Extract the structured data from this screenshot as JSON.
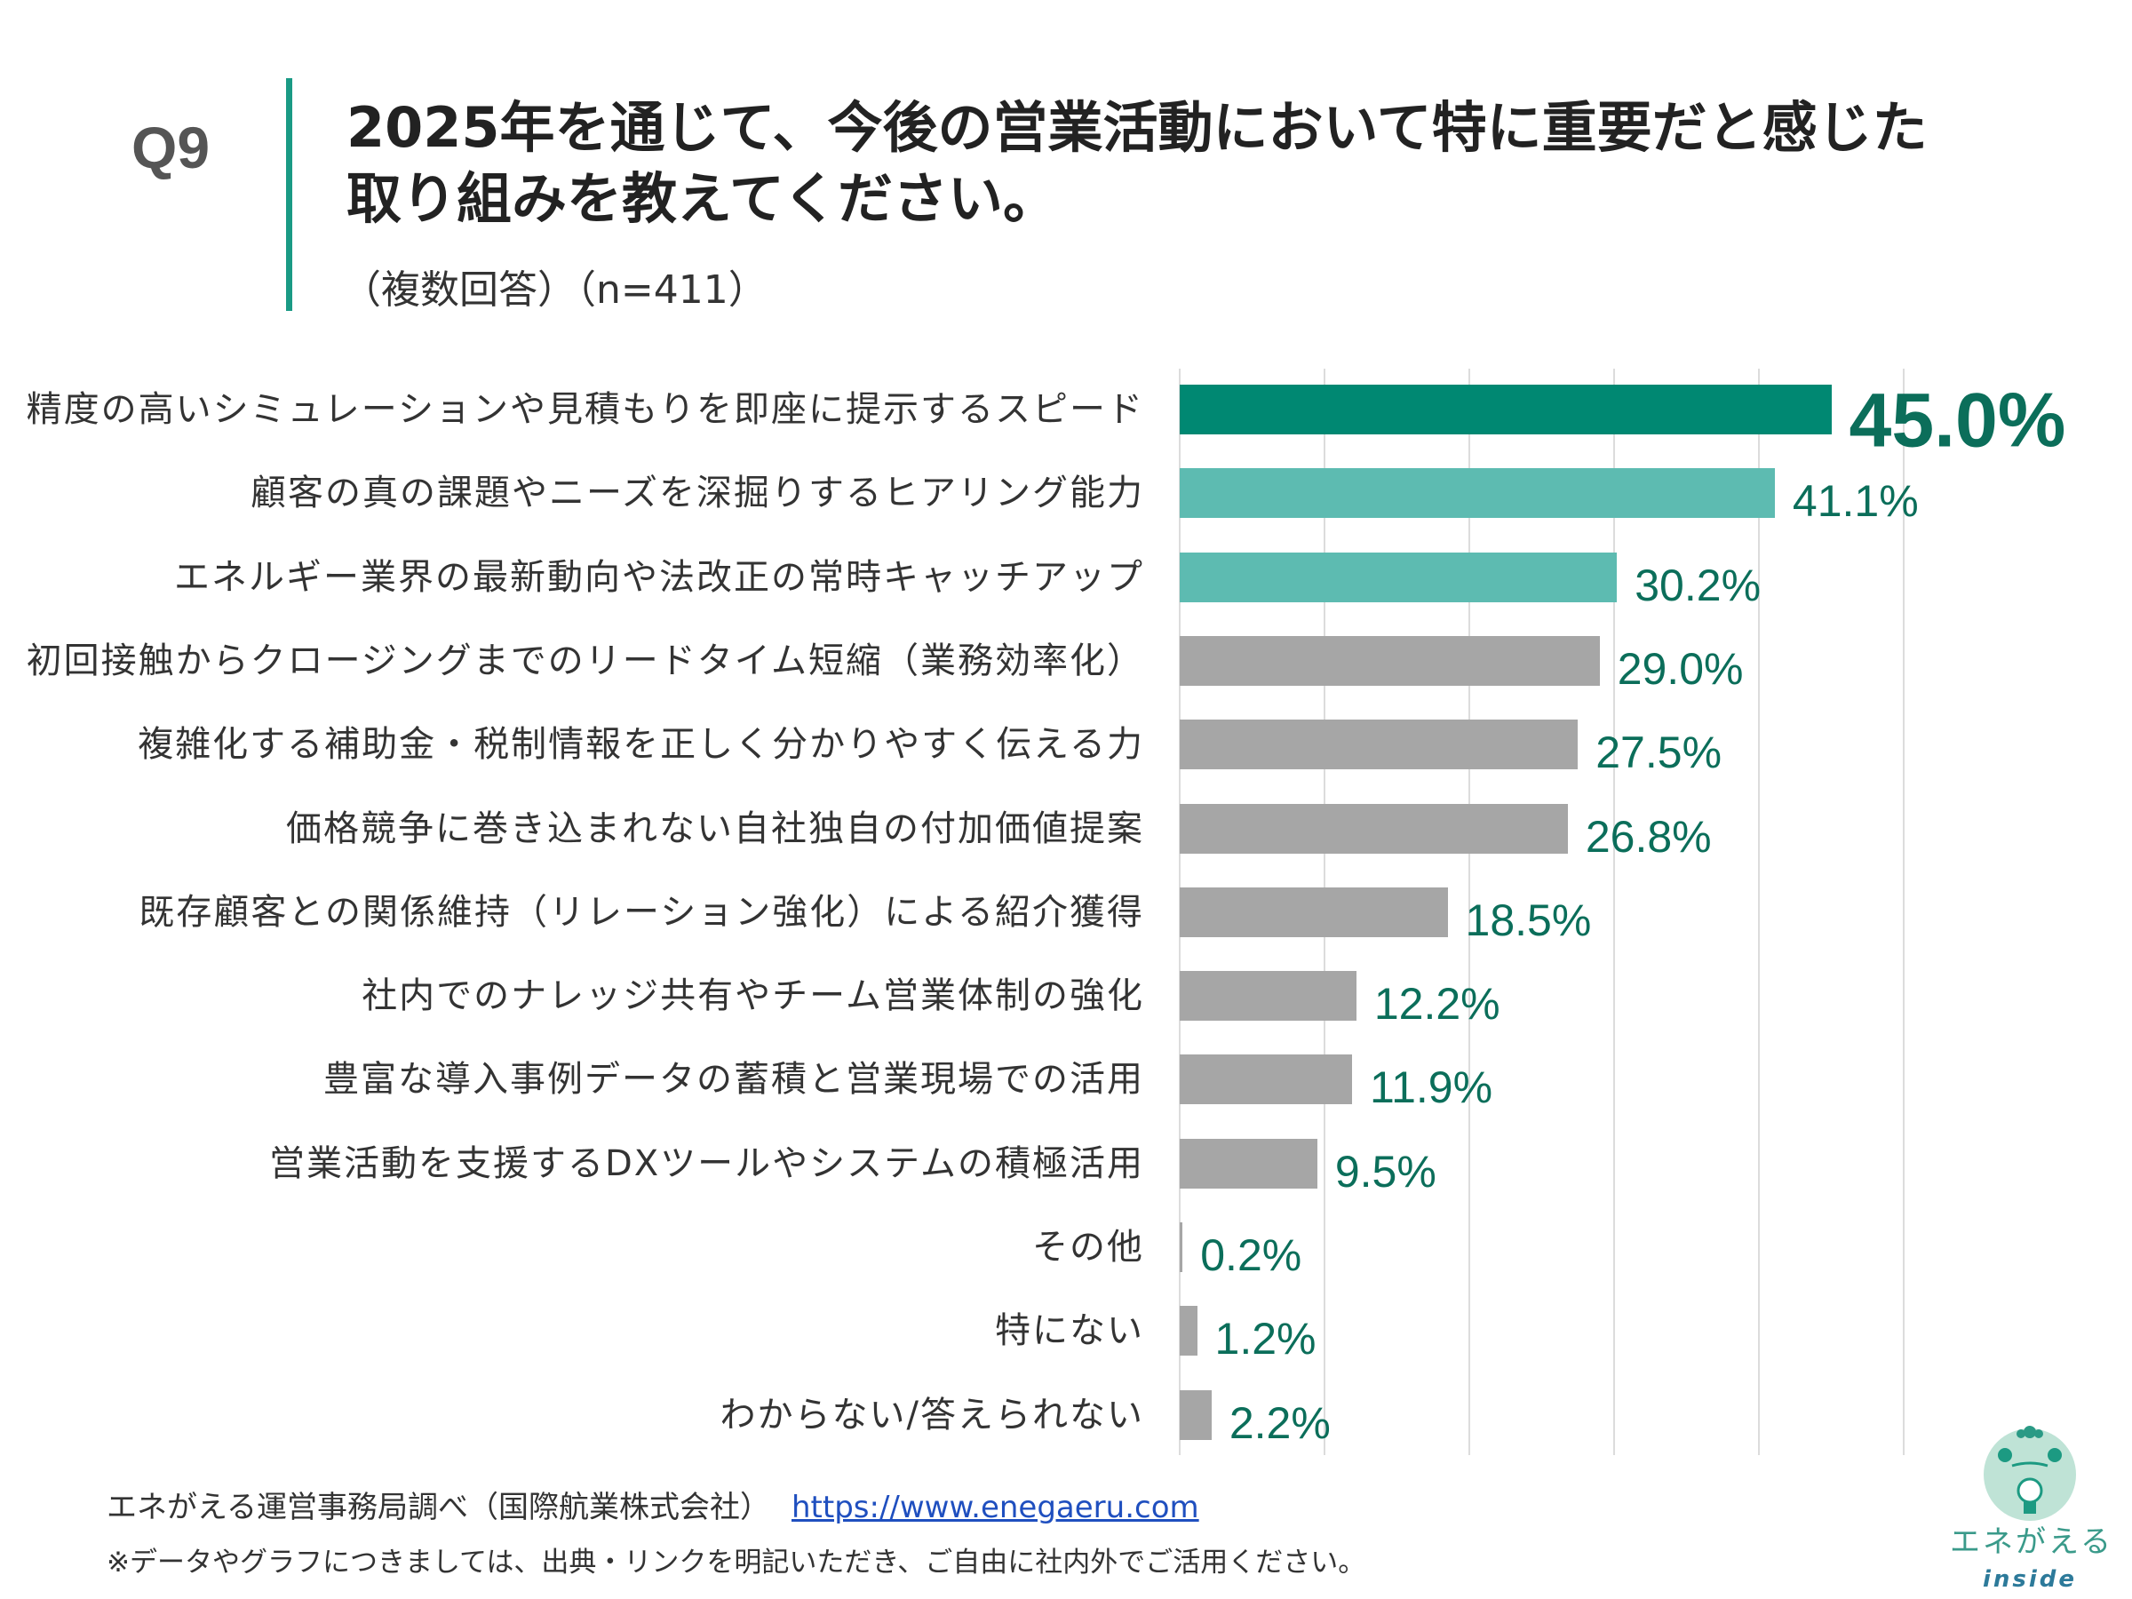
{
  "header": {
    "question_no": "Q9",
    "title_line1": "2025年を通じて、今後の営業活動において特に重要だと感じた",
    "title_line2": "取り組みを教えてください。",
    "subtitle": "（複数回答）（n=411）"
  },
  "chart_data": {
    "type": "bar",
    "orientation": "horizontal",
    "unit": "%",
    "xlim": [
      0,
      50
    ],
    "grid": true,
    "categories": [
      "精度の高いシミュレーションや見積もりを即座に提示するスピード",
      "顧客の真の課題やニーズを深掘りするヒアリング能力",
      "エネルギー業界の最新動向や法改正の常時キャッチアップ",
      "初回接触からクロージングまでのリードタイム短縮（業務効率化）",
      "複雑化する補助金・税制情報を正しく分かりやすく伝える力",
      "価格競争に巻き込まれない自社独自の付加価値提案",
      "既存顧客との関係維持（リレーション強化）による紹介獲得",
      "社内でのナレッジ共有やチーム営業体制の強化",
      "豊富な導入事例データの蓄積と営業現場での活用",
      "営業活動を支援するDXツールやシステムの積極活用",
      "その他",
      "特にない",
      "わからない/答えられない"
    ],
    "values": [
      45.0,
      41.1,
      30.2,
      29.0,
      27.5,
      26.8,
      18.5,
      12.2,
      11.9,
      9.5,
      0.2,
      1.2,
      2.2
    ],
    "value_labels": [
      "45.0%",
      "41.1%",
      "30.2%",
      "29.0%",
      "27.5%",
      "26.8%",
      "18.5%",
      "12.2%",
      "11.9%",
      "9.5%",
      "0.2%",
      "1.2%",
      "2.2%"
    ],
    "bar_colors": [
      "#008872",
      "#5dbbb1",
      "#5dbbb1",
      "#a6a6a6",
      "#a6a6a6",
      "#a6a6a6",
      "#a6a6a6",
      "#a6a6a6",
      "#a6a6a6",
      "#a6a6a6",
      "#a6a6a6",
      "#a6a6a6",
      "#a6a6a6"
    ],
    "label_color": "#0b6e5a"
  },
  "footer": {
    "source": "エネがえる運営事務局調べ（国際航業株式会社）",
    "link": "https://www.enegaeru.com",
    "note": "※データやグラフにつきましては、出典・リンクを明記いただき、ご自由に社内外でご活用ください。"
  },
  "logo": {
    "text": "エネがえる",
    "sub": "inside"
  }
}
